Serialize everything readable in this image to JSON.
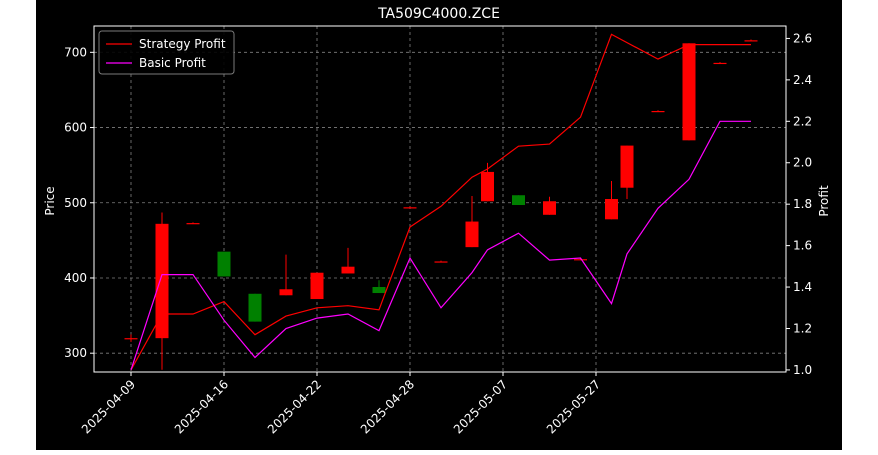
{
  "chart_data": {
    "type": "candlestick",
    "title": "TA509C4000.ZCE",
    "ylabel_left": "Price",
    "ylabel_right": "Profit",
    "xlabel": "",
    "ylim_left": [
      275,
      735
    ],
    "ylim_right": [
      0.99,
      2.66
    ],
    "yticks_left": [
      300,
      400,
      500,
      600,
      700
    ],
    "yticks_right": [
      1.0,
      1.2,
      1.4,
      1.6,
      1.8,
      2.0,
      2.2,
      2.4,
      2.6
    ],
    "grid": true,
    "legend_position": "top-left",
    "x_tick_labels": [
      "2025-04-09",
      "2025-04-16",
      "2025-04-22",
      "2025-04-28",
      "2025-05-07",
      "2025-05-27"
    ],
    "x_tick_index": [
      0,
      6,
      12,
      18,
      24,
      30
    ],
    "candles": [
      {
        "open": 320,
        "close": 320,
        "high": 325,
        "low": 315
      },
      {
        "open": 472,
        "close": 320,
        "high": 487,
        "low": 278
      },
      {
        "open": 473,
        "close": 473,
        "high": 474,
        "low": 472
      },
      {
        "open": 402,
        "close": 435,
        "high": 435,
        "low": 402
      },
      {
        "open": 342,
        "close": 379,
        "high": 379,
        "low": 342
      },
      {
        "open": 385,
        "close": 377,
        "high": 431,
        "low": 377
      },
      {
        "open": 407,
        "close": 372,
        "high": 407,
        "low": 372
      },
      {
        "open": 415,
        "close": 406,
        "high": 440,
        "low": 406
      },
      {
        "open": 380,
        "close": 388,
        "high": 397,
        "low": 380
      },
      {
        "open": 494,
        "close": 494,
        "high": 495,
        "low": 493
      },
      {
        "open": 422,
        "close": 422,
        "high": 423,
        "low": 421
      },
      {
        "open": 475,
        "close": 441,
        "high": 509,
        "low": 441
      },
      {
        "open": 541,
        "close": 502,
        "high": 553,
        "low": 502
      },
      {
        "open": 497,
        "close": 510,
        "high": 510,
        "low": 497
      },
      {
        "open": 502,
        "close": 484,
        "high": 508,
        "low": 484
      },
      {
        "open": 425,
        "close": 425,
        "high": 426,
        "low": 424
      },
      {
        "open": 505,
        "close": 478,
        "high": 529,
        "low": 478
      },
      {
        "open": 576,
        "close": 520,
        "high": 576,
        "low": 505
      },
      {
        "open": 622,
        "close": 622,
        "high": 623,
        "low": 621
      },
      {
        "open": 712,
        "close": 583,
        "high": 712,
        "low": 583
      },
      {
        "open": 686,
        "close": 686,
        "high": 687,
        "low": 685
      },
      {
        "open": 716,
        "close": 716,
        "high": 717,
        "low": 715
      }
    ],
    "candle_x_index": [
      0,
      2,
      4,
      6,
      8,
      10,
      12,
      14,
      16,
      18,
      20,
      22,
      23,
      25,
      27,
      29,
      31,
      32,
      34,
      36,
      38,
      40
    ],
    "x_index_max": 40,
    "series": [
      {
        "name": "Strategy Profit",
        "color": "#ff0000",
        "x_index": [
          0,
          2,
          4,
          6,
          8,
          10,
          12,
          14,
          16,
          18,
          20,
          22,
          23,
          25,
          27,
          29,
          31,
          32,
          34,
          36,
          38,
          40
        ],
        "values": [
          1.0,
          1.27,
          1.27,
          1.33,
          1.17,
          1.26,
          1.3,
          1.31,
          1.29,
          1.69,
          1.79,
          1.93,
          1.97,
          2.08,
          2.09,
          2.22,
          2.62,
          2.58,
          2.5,
          2.57,
          2.57,
          2.57
        ]
      },
      {
        "name": "Basic Profit",
        "color": "#ff00ff",
        "x_index": [
          0,
          2,
          4,
          6,
          8,
          10,
          12,
          14,
          16,
          18,
          20,
          22,
          23,
          25,
          27,
          29,
          31,
          32,
          34,
          36,
          38,
          40
        ],
        "values": [
          1.0,
          1.46,
          1.46,
          1.24,
          1.06,
          1.2,
          1.25,
          1.27,
          1.19,
          1.54,
          1.3,
          1.47,
          1.58,
          1.66,
          1.53,
          1.54,
          1.32,
          1.56,
          1.78,
          1.92,
          2.2,
          2.2
        ]
      }
    ],
    "up_color": "#008000",
    "down_color": "#ff0000"
  }
}
